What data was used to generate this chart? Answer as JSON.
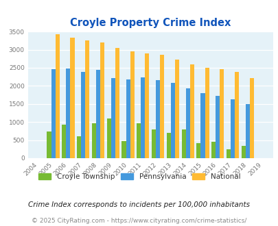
{
  "title": "Croyle Property Crime Index",
  "years": [
    2004,
    2005,
    2006,
    2007,
    2008,
    2009,
    2010,
    2011,
    2012,
    2013,
    2014,
    2015,
    2016,
    2017,
    2018,
    2019
  ],
  "croyle": [
    0,
    730,
    930,
    610,
    960,
    1090,
    475,
    960,
    790,
    700,
    800,
    410,
    460,
    255,
    340,
    0
  ],
  "pennsylvania": [
    0,
    2460,
    2475,
    2380,
    2440,
    2215,
    2185,
    2240,
    2160,
    2075,
    1940,
    1800,
    1720,
    1630,
    1490,
    0
  ],
  "national": [
    0,
    3430,
    3330,
    3260,
    3205,
    3040,
    2950,
    2900,
    2855,
    2730,
    2600,
    2500,
    2470,
    2385,
    2210,
    0
  ],
  "croyle_color": "#77bb33",
  "pa_color": "#4499dd",
  "national_color": "#ffbb33",
  "bg_color": "#e5f2f8",
  "title_color": "#1155bb",
  "ylim": [
    0,
    3500
  ],
  "yticks": [
    0,
    500,
    1000,
    1500,
    2000,
    2500,
    3000,
    3500
  ],
  "footnote1": "Crime Index corresponds to incidents per 100,000 inhabitants",
  "footnote2": "© 2025 CityRating.com - https://www.cityrating.com/crime-statistics/",
  "legend_labels": [
    "Croyle Township",
    "Pennsylvania",
    "National"
  ]
}
